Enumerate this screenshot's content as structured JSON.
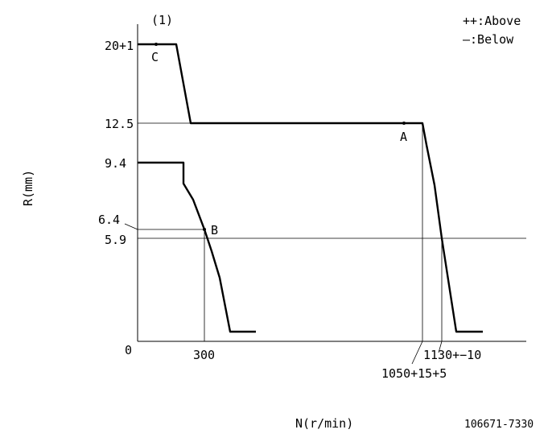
{
  "diagram_number": "(1)",
  "legend": {
    "above": "++:Above",
    "below": "—:Below"
  },
  "axes": {
    "y_label": "R(mm)",
    "x_label": "N(r/min)",
    "origin": "0"
  },
  "y_ticks": {
    "t20": "20+1",
    "t12": "12.5",
    "t9": "9.4",
    "t6_4": "6.4",
    "t5_9": "5.9"
  },
  "x_ticks": {
    "t300": "300",
    "t1130": "1130+−10",
    "t1050": "1050+15+5"
  },
  "points": {
    "a": "A",
    "b": "B",
    "c": "C"
  },
  "part_code": "106671-7330"
}
